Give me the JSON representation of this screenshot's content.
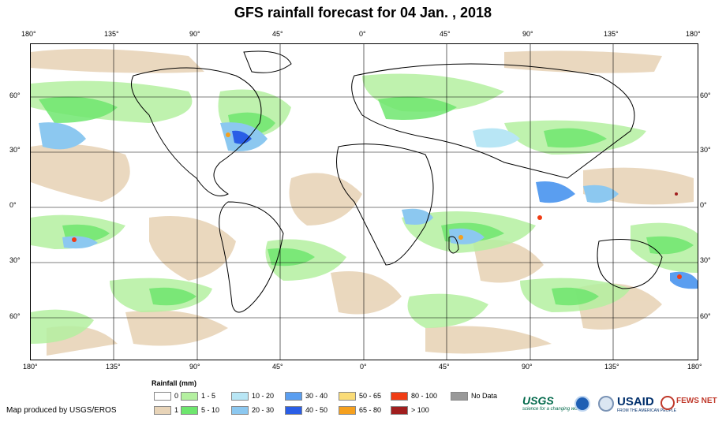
{
  "title": "GFS rainfall forecast for 04 Jan. , 2018",
  "lon_labels": [
    "180°",
    "135°",
    "90°",
    "45°",
    "0°",
    "45°",
    "90°",
    "135°",
    "180°"
  ],
  "lat_labels": [
    "60°",
    "30°",
    "0°",
    "30°",
    "60°"
  ],
  "legend": {
    "title": "Rainfall (mm)",
    "items": [
      {
        "label": "0",
        "color": "#ffffff"
      },
      {
        "label": "1",
        "color": "#e8d4b8"
      },
      {
        "label": "1 - 5",
        "color": "#b4f0a0"
      },
      {
        "label": "5 - 10",
        "color": "#6ee66e"
      },
      {
        "label": "10 - 20",
        "color": "#b8e6f5"
      },
      {
        "label": "20 - 30",
        "color": "#8cc8f0"
      },
      {
        "label": "30 - 40",
        "color": "#5a9ef0"
      },
      {
        "label": "40 - 50",
        "color": "#2a5ee6"
      },
      {
        "label": "50 - 65",
        "color": "#fadc78"
      },
      {
        "label": "65 - 80",
        "color": "#f5a01e"
      },
      {
        "label": "80 - 100",
        "color": "#f03c14"
      },
      {
        "label": "> 100",
        "color": "#a01e1e"
      },
      {
        "label": "No Data",
        "color": "#999999"
      }
    ]
  },
  "credit": "Map produced by USGS/EROS",
  "logos": {
    "usgs": "USGS",
    "usgs_tag": "science for a changing world",
    "usaid": "USAID",
    "usaid_tag": "FROM THE AMERICAN PEOPLE",
    "fews": "FEWS NET"
  }
}
